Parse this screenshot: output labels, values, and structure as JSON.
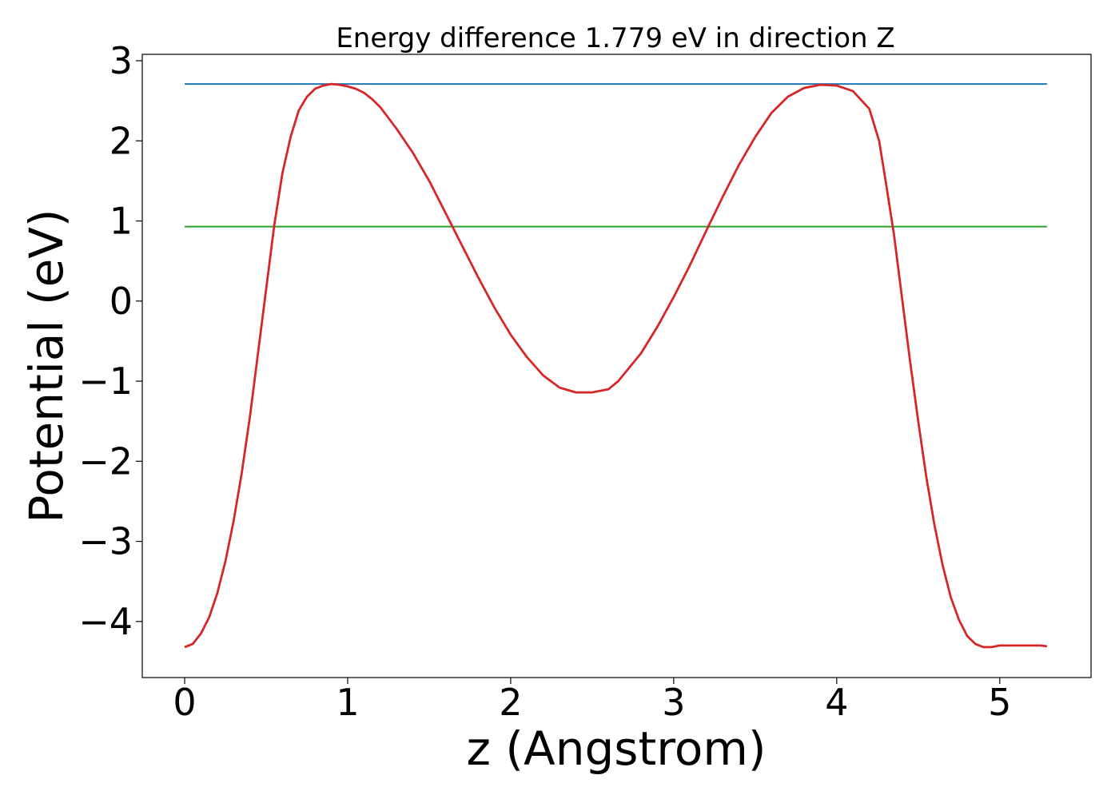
{
  "chart_data": {
    "type": "line",
    "title": "Energy difference 1.779 eV in direction Z",
    "xlabel": "z (Angstrom)",
    "ylabel": "Potential (eV)",
    "xlim": [
      -0.26,
      5.56
    ],
    "ylim": [
      -4.7,
      3.08
    ],
    "xticks": [
      0,
      1,
      2,
      3,
      4,
      5
    ],
    "xtick_labels": [
      "0",
      "1",
      "2",
      "3",
      "4",
      "5"
    ],
    "yticks": [
      -4,
      -3,
      -2,
      -1,
      0,
      1,
      2,
      3
    ],
    "ytick_labels": [
      "−4",
      "−3",
      "−2",
      "−1",
      "0",
      "1",
      "2",
      "3"
    ],
    "grid": false,
    "colors": {
      "potential": "#d62728",
      "max_line": "#1f77b4",
      "mean_line": "#2ca02c"
    },
    "series": [
      {
        "color": "#d62728",
        "x": [
          0.0,
          0.05,
          0.1,
          0.15,
          0.2,
          0.25,
          0.3,
          0.35,
          0.4,
          0.45,
          0.5,
          0.55,
          0.6,
          0.65,
          0.7,
          0.75,
          0.8,
          0.85,
          0.9,
          0.95,
          1.0,
          1.05,
          1.1,
          1.15,
          1.2,
          1.3,
          1.4,
          1.5,
          1.6,
          1.7,
          1.8,
          1.9,
          2.0,
          2.1,
          2.2,
          2.3,
          2.4,
          2.5,
          2.6,
          2.66,
          2.7,
          2.8,
          2.9,
          3.0,
          3.1,
          3.2,
          3.3,
          3.4,
          3.5,
          3.6,
          3.7,
          3.8,
          3.9,
          4.0,
          4.1,
          4.2,
          4.26,
          4.3,
          4.35,
          4.4,
          4.45,
          4.5,
          4.55,
          4.6,
          4.65,
          4.7,
          4.75,
          4.8,
          4.85,
          4.9,
          4.95,
          5.0,
          5.05,
          5.1,
          5.15,
          5.2,
          5.25,
          5.29
        ],
        "y": [
          -4.32,
          -4.28,
          -4.15,
          -3.95,
          -3.65,
          -3.25,
          -2.75,
          -2.15,
          -1.45,
          -0.65,
          0.15,
          0.95,
          1.6,
          2.05,
          2.38,
          2.55,
          2.65,
          2.69,
          2.71,
          2.7,
          2.68,
          2.65,
          2.6,
          2.52,
          2.42,
          2.15,
          1.85,
          1.5,
          1.1,
          0.7,
          0.3,
          -0.08,
          -0.42,
          -0.7,
          -0.93,
          -1.08,
          -1.14,
          -1.14,
          -1.1,
          -1.0,
          -0.9,
          -0.65,
          -0.32,
          0.05,
          0.45,
          0.88,
          1.3,
          1.7,
          2.05,
          2.35,
          2.55,
          2.66,
          2.7,
          2.69,
          2.62,
          2.4,
          2.0,
          1.5,
          0.85,
          0.05,
          -0.75,
          -1.5,
          -2.2,
          -2.8,
          -3.3,
          -3.7,
          -3.98,
          -4.18,
          -4.28,
          -4.32,
          -4.32,
          -4.3,
          -4.3,
          -4.3,
          -4.3,
          -4.3,
          -4.3,
          -4.31
        ]
      },
      {
        "color": "#1f77b4",
        "x": [
          0.0,
          5.29
        ],
        "y": [
          2.71,
          2.71
        ]
      },
      {
        "color": "#2ca02c",
        "x": [
          0.0,
          5.29
        ],
        "y": [
          0.93,
          0.93
        ]
      }
    ]
  }
}
